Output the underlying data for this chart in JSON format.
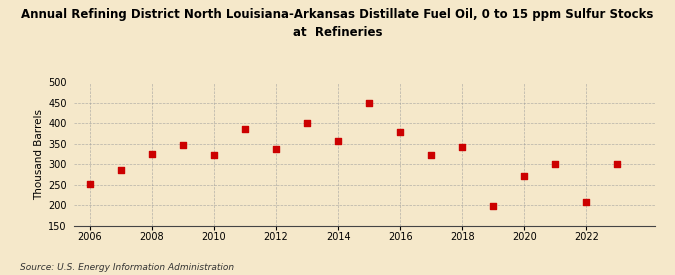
{
  "title_line1": "Annual Refining District North Louisiana-Arkansas Distillate Fuel Oil, 0 to 15 ppm Sulfur Stocks",
  "title_line2": "at  Refineries",
  "ylabel": "Thousand Barrels",
  "source": "Source: U.S. Energy Information Administration",
  "years": [
    2006,
    2007,
    2008,
    2009,
    2010,
    2011,
    2012,
    2013,
    2014,
    2015,
    2016,
    2017,
    2018,
    2019,
    2020,
    2021,
    2022,
    2023
  ],
  "values": [
    252,
    285,
    325,
    348,
    322,
    385,
    338,
    400,
    357,
    450,
    380,
    322,
    343,
    197,
    270,
    300,
    208,
    300
  ],
  "ylim": [
    150,
    500
  ],
  "yticks": [
    150,
    200,
    250,
    300,
    350,
    400,
    450,
    500
  ],
  "xlim": [
    2005.5,
    2024.2
  ],
  "xticks": [
    2006,
    2008,
    2010,
    2012,
    2014,
    2016,
    2018,
    2020,
    2022
  ],
  "marker_color": "#cc0000",
  "marker": "s",
  "marker_size": 4,
  "bg_color": "#f5e8ca",
  "grid_color": "#999999",
  "title_fontsize": 8.5,
  "label_fontsize": 7.5,
  "tick_fontsize": 7,
  "source_fontsize": 6.5
}
